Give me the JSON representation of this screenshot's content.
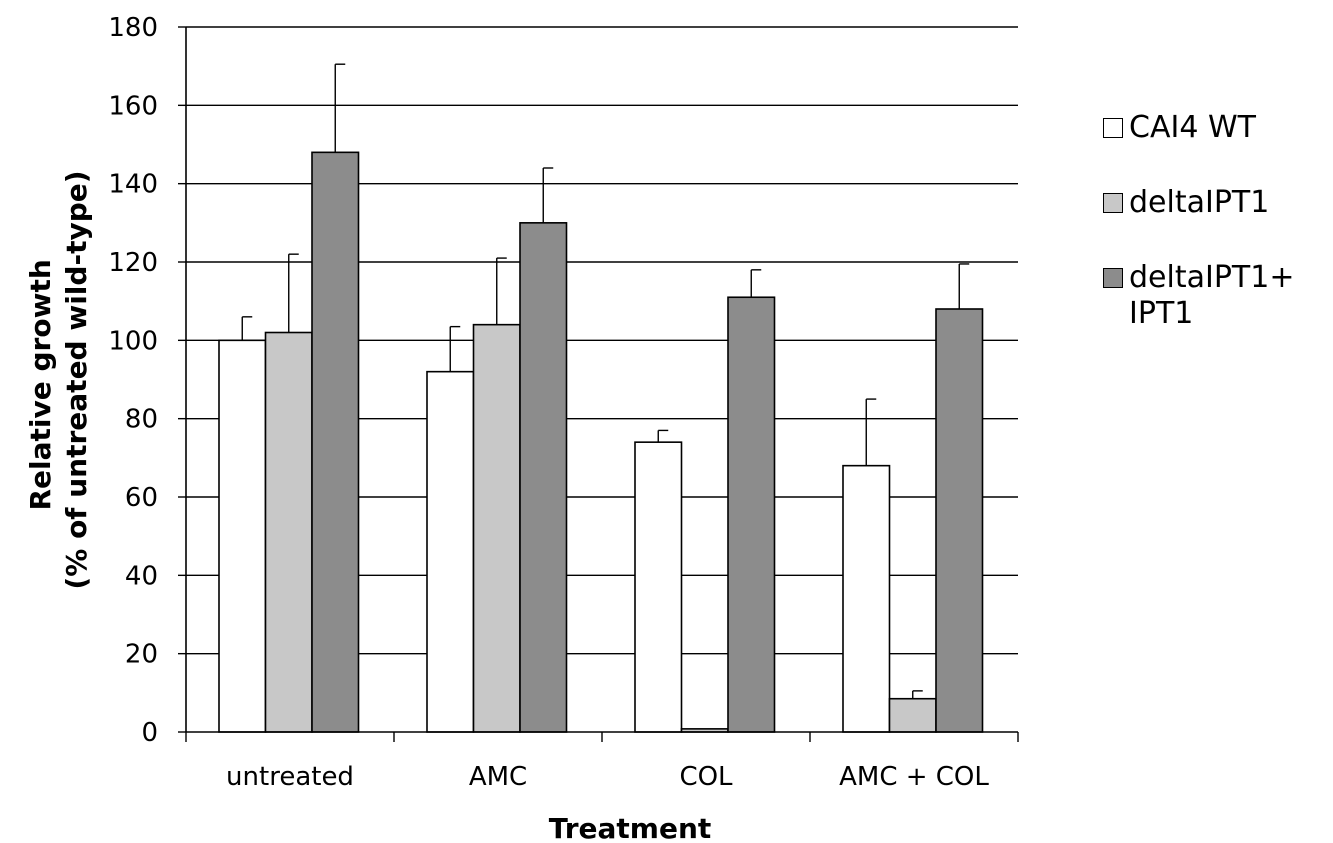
{
  "chart_data": {
    "type": "bar",
    "xlabel": "Treatment",
    "ylabel_lines": [
      "Relative growth",
      "(% of untreated wild-type)"
    ],
    "ylim": [
      0,
      180
    ],
    "yticks": [
      0,
      20,
      40,
      60,
      80,
      100,
      120,
      140,
      160,
      180
    ],
    "grid": true,
    "legend_position": "right",
    "categories": [
      "untreated",
      "AMC",
      "COL",
      "AMC + COL"
    ],
    "series": [
      {
        "name": "CAI4 WT",
        "color": "#ffffff",
        "values": [
          100,
          92,
          74,
          68
        ],
        "errors": [
          6,
          11.5,
          3,
          17
        ]
      },
      {
        "name": "deltaIPT1",
        "color": "#c8c8c8",
        "values": [
          102,
          104,
          0.8,
          8.5
        ],
        "errors": [
          20,
          17,
          0,
          2
        ]
      },
      {
        "name": "deltaIPT1+ IPT1",
        "color": "#8c8c8c",
        "values": [
          148,
          130,
          111,
          108
        ],
        "errors": [
          22.5,
          14,
          7,
          11.5
        ]
      }
    ]
  }
}
